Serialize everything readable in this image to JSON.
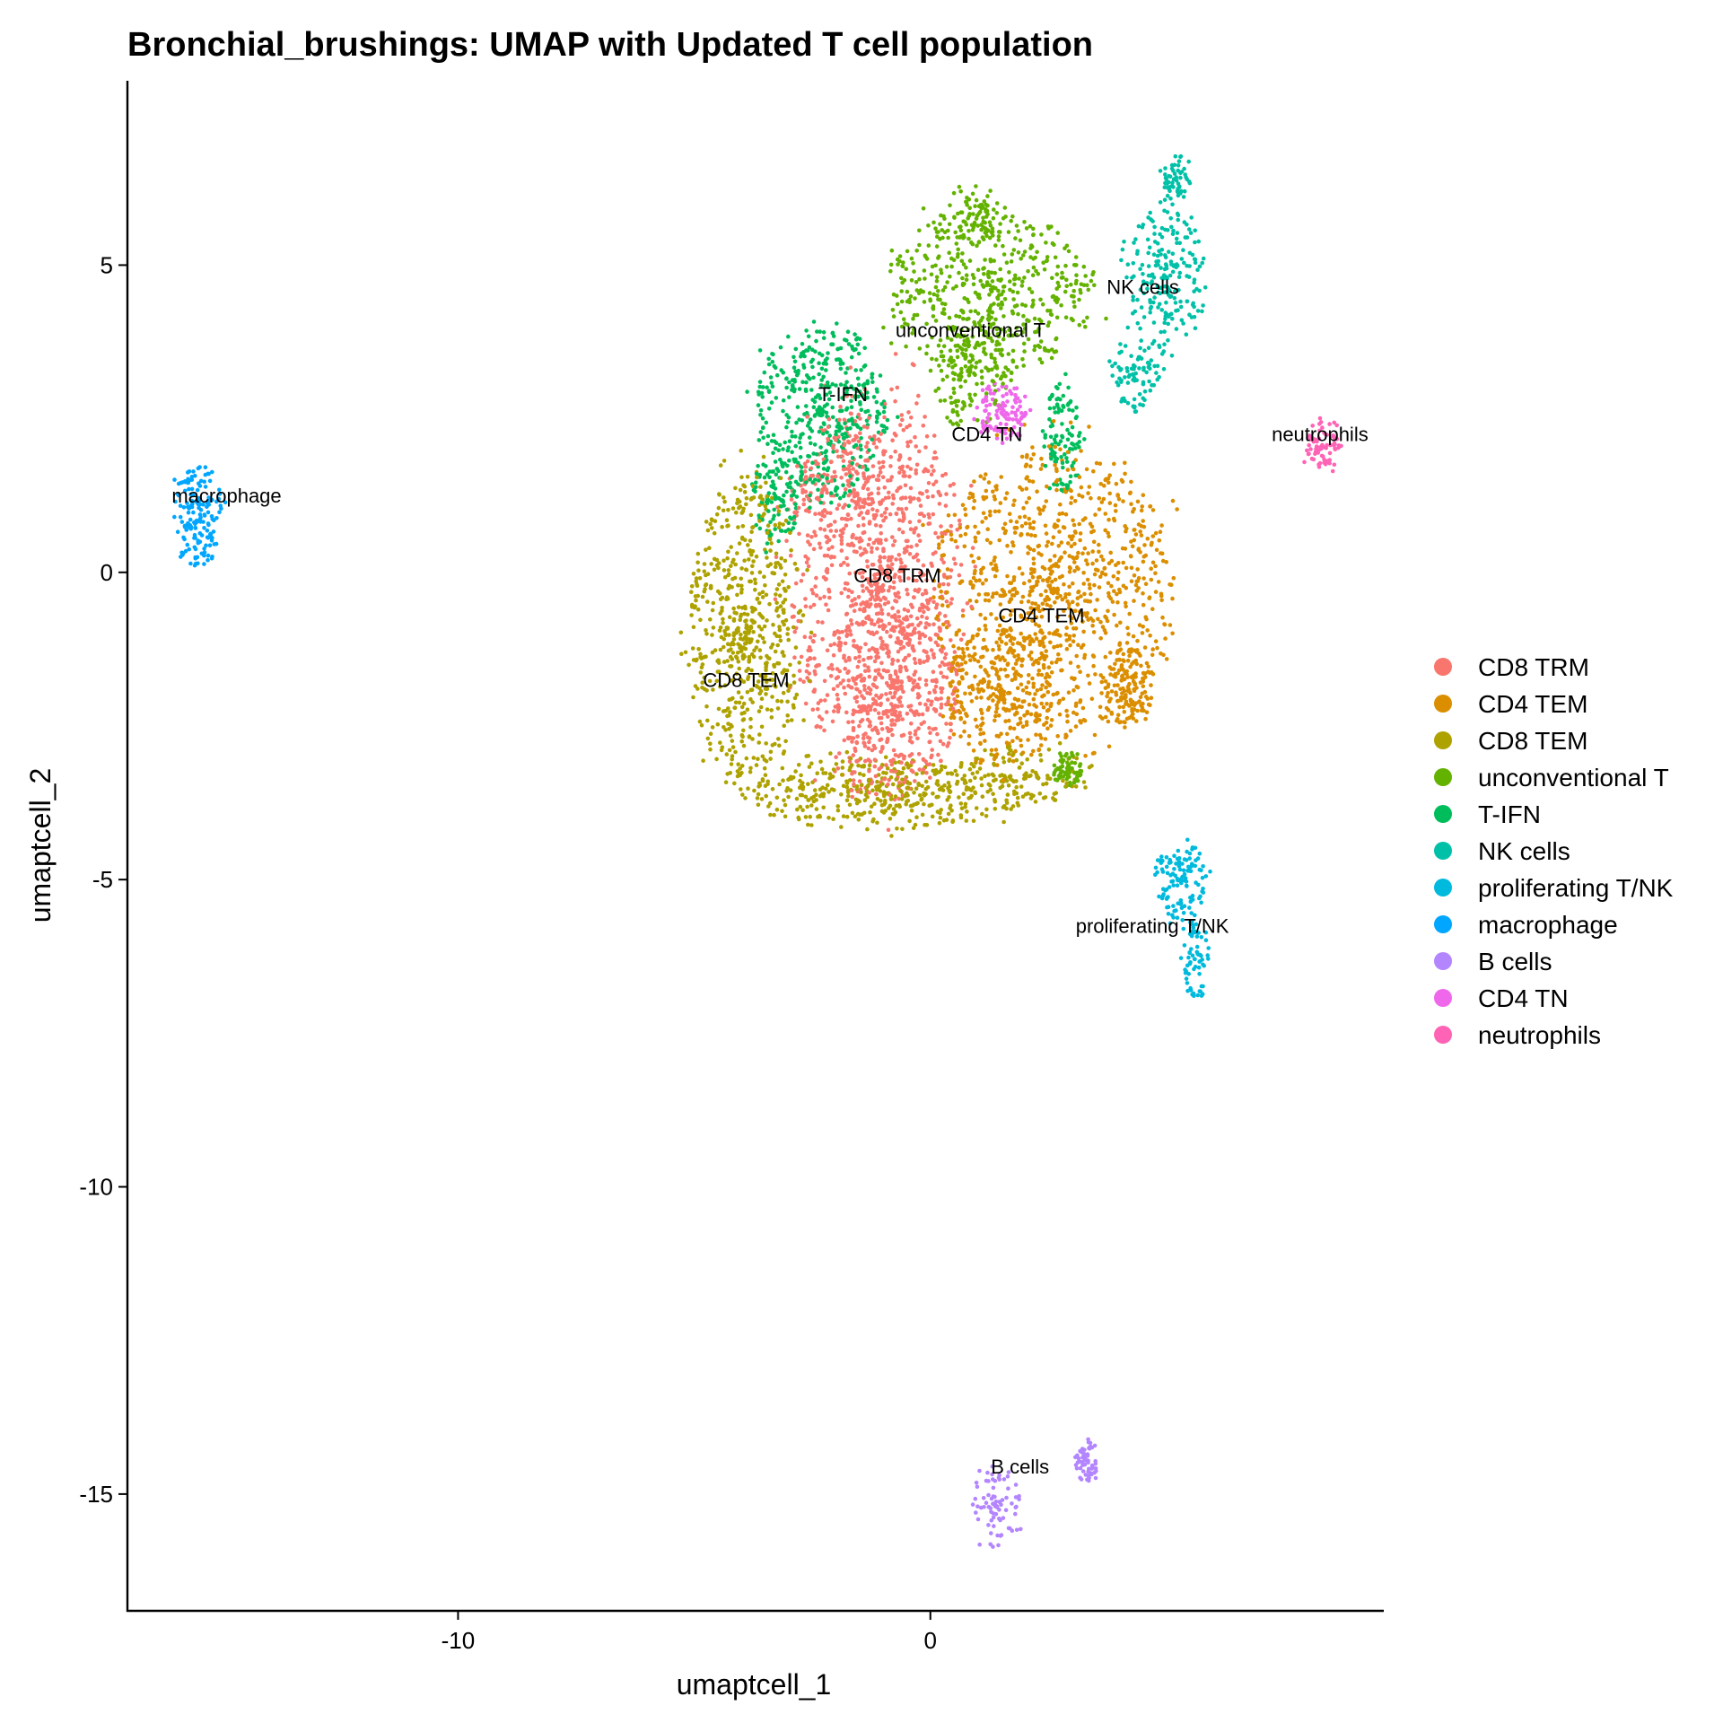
{
  "chart_data": {
    "type": "scatter",
    "title": "Bronchial_brushings: UMAP with Updated T cell population",
    "xlabel": "umaptcell_1",
    "ylabel": "umaptcell_2",
    "xlim": [
      -17.0,
      9.6
    ],
    "ylim": [
      -16.9,
      8.0
    ],
    "xticks": [
      -10,
      0
    ],
    "xtick_labels": [
      "-10",
      "0"
    ],
    "yticks": [
      5,
      0,
      -5,
      -10,
      -15
    ],
    "ytick_labels": [
      "5",
      "0",
      "-5",
      "-10",
      "-15"
    ],
    "grid": false,
    "legend_position": "right",
    "series": [
      {
        "name": "CD8 TRM",
        "color": "#F8766D",
        "label_pos": [
          -0.7,
          -0.05
        ],
        "regions": [
          [
            -1.1,
            -0.3,
            1.9,
            3.4,
            0.55
          ],
          [
            -0.8,
            -1.8,
            1.4,
            1.9,
            0.3
          ],
          [
            -1.5,
            1.2,
            1.6,
            1.1,
            0.15
          ]
        ]
      },
      {
        "name": "CD4 TEM",
        "color": "#DB8E00",
        "label_pos": [
          2.35,
          -0.7
        ],
        "regions": [
          [
            2.6,
            -0.3,
            2.6,
            2.4,
            0.7
          ],
          [
            4.2,
            -1.9,
            0.5,
            0.7,
            0.1
          ],
          [
            1.5,
            -2.0,
            1.2,
            1.2,
            0.2
          ]
        ]
      },
      {
        "name": "CD8 TEM",
        "color": "#AEA200",
        "label_pos": [
          -3.9,
          -1.75
        ],
        "regions": [
          [
            -3.9,
            -1.0,
            1.2,
            2.6,
            0.55
          ],
          [
            -1.0,
            -3.6,
            3.0,
            0.6,
            0.35
          ],
          [
            2.0,
            -3.3,
            1.5,
            0.5,
            0.1
          ]
        ]
      },
      {
        "name": "unconventional T",
        "color": "#64B200",
        "label_pos": [
          0.85,
          3.95
        ],
        "regions": [
          [
            1.3,
            4.6,
            2.2,
            1.4,
            0.6
          ],
          [
            0.8,
            3.3,
            0.8,
            1.0,
            0.2
          ],
          [
            2.9,
            -3.2,
            0.3,
            0.3,
            0.1
          ],
          [
            1.0,
            5.8,
            0.6,
            0.5,
            0.1
          ]
        ]
      },
      {
        "name": "T-IFN",
        "color": "#00BD5C",
        "label_pos": [
          -1.85,
          2.9
        ],
        "regions": [
          [
            -2.3,
            2.6,
            1.4,
            1.5,
            0.7
          ],
          [
            2.8,
            2.2,
            0.4,
            0.9,
            0.15
          ],
          [
            -3.3,
            1.2,
            0.5,
            0.8,
            0.15
          ]
        ]
      },
      {
        "name": "NK cells",
        "color": "#00C1A7",
        "label_pos": [
          4.5,
          4.65
        ],
        "regions": [
          [
            5.0,
            4.8,
            0.85,
            1.3,
            0.6
          ],
          [
            4.3,
            3.2,
            0.55,
            0.6,
            0.2
          ],
          [
            5.2,
            6.4,
            0.3,
            0.4,
            0.2
          ]
        ]
      },
      {
        "name": "proliferating T/NK",
        "color": "#00BADE",
        "label_pos": [
          4.7,
          -5.75
        ],
        "regions": [
          [
            5.3,
            -5.0,
            0.55,
            0.7,
            0.6
          ],
          [
            5.6,
            -6.3,
            0.3,
            0.7,
            0.4
          ]
        ]
      },
      {
        "name": "macrophage",
        "color": "#00A6FF",
        "label_pos": [
          -14.9,
          1.25
        ],
        "regions": [
          [
            -15.5,
            1.2,
            0.5,
            0.55,
            0.5
          ],
          [
            -15.5,
            0.5,
            0.4,
            0.4,
            0.5
          ]
        ]
      },
      {
        "name": "B cells",
        "color": "#B385FF",
        "label_pos": [
          1.9,
          -14.55
        ],
        "regions": [
          [
            1.4,
            -15.2,
            0.5,
            0.7,
            0.6
          ],
          [
            3.3,
            -14.45,
            0.25,
            0.35,
            0.4
          ]
        ]
      },
      {
        "name": "CD4 TN",
        "color": "#EF67EB",
        "label_pos": [
          1.2,
          2.25
        ],
        "regions": [
          [
            1.5,
            2.6,
            0.6,
            0.5,
            1.0
          ]
        ]
      },
      {
        "name": "neutrophils",
        "color": "#FF63B6",
        "label_pos": [
          8.25,
          2.25
        ],
        "regions": [
          [
            8.3,
            2.05,
            0.4,
            0.4,
            1.0
          ]
        ]
      }
    ],
    "counts": [
      1500,
      1350,
      1150,
      800,
      650,
      350,
      190,
      160,
      140,
      110,
      75
    ]
  }
}
